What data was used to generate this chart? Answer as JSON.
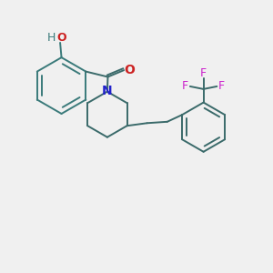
{
  "background_color": "#f0f0f0",
  "bond_color": "#3a7a7a",
  "bond_color_dark": "#3a6a6a",
  "N_color": "#2222cc",
  "O_color": "#cc2222",
  "F_color": "#cc22cc",
  "H_color": "#3a7a7a",
  "linewidth": 1.4,
  "dbl_linewidth": 1.4,
  "figsize": [
    3.0,
    3.0
  ],
  "dpi": 100,
  "xlim": [
    0,
    10
  ],
  "ylim": [
    0,
    10
  ]
}
